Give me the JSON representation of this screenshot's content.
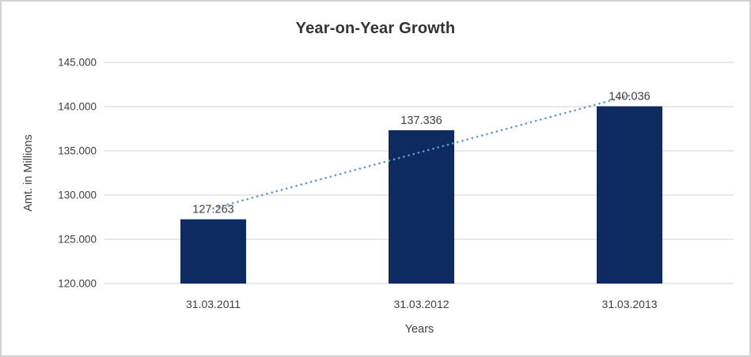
{
  "frame": {
    "background": "#ffffff",
    "border_color": "#d2d2d2"
  },
  "chart_data": {
    "type": "bar",
    "title": "Year-on-Year Growth",
    "xlabel": "Years",
    "ylabel": "Amt. in Millions",
    "categories": [
      "31.03.2011",
      "31.03.2012",
      "31.03.2013"
    ],
    "values": [
      127263,
      137336,
      140036
    ],
    "value_labels": [
      "127.263",
      "137.336",
      "140.036"
    ],
    "ylim": [
      120000,
      145000
    ],
    "yticks": [
      {
        "value": 120000,
        "label": "120.000"
      },
      {
        "value": 125000,
        "label": "125.000"
      },
      {
        "value": 130000,
        "label": "130.000"
      },
      {
        "value": 135000,
        "label": "135.000"
      },
      {
        "value": 140000,
        "label": "140.000"
      },
      {
        "value": 145000,
        "label": "145.000"
      }
    ],
    "grid": true,
    "legend": "none",
    "trendline": {
      "type": "linear",
      "style": "dotted",
      "color": "#5b9bd5"
    },
    "colors": {
      "bar": "#0d2b61",
      "gridline": "#d9d9d9",
      "axis_text": "#404040",
      "title_text": "#333333"
    }
  }
}
